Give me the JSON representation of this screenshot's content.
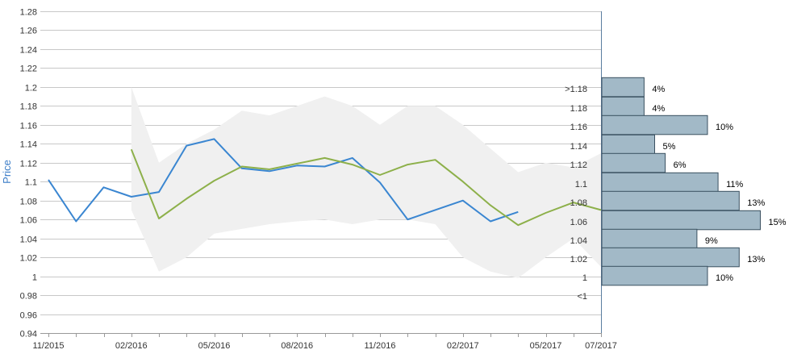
{
  "chart_data": [
    {
      "type": "line",
      "ylabel": "Price",
      "ylim": [
        0.94,
        1.28
      ],
      "yticks": [
        "0.94",
        "0.96",
        "0.98",
        "1",
        "1.02",
        "1.04",
        "1.06",
        "1.08",
        "1.1",
        "1.12",
        "1.14",
        "1.16",
        "1.18",
        "1.2",
        "1.22",
        "1.24",
        "1.26",
        "1.28"
      ],
      "xlim": [
        0,
        20
      ],
      "xticks": [
        {
          "label": "11/2015",
          "x": 0
        },
        {
          "label": "02/2016",
          "x": 3
        },
        {
          "label": "05/2016",
          "x": 6
        },
        {
          "label": "08/2016",
          "x": 9
        },
        {
          "label": "11/2016",
          "x": 12
        },
        {
          "label": "02/2017",
          "x": 15
        },
        {
          "label": "05/2017",
          "x": 18
        },
        {
          "label": "07/2017",
          "x": 20
        }
      ],
      "grid": true,
      "colors": {
        "series1": "#3a86d1",
        "series2": "#8db04a",
        "band": "#f0f0f0"
      },
      "band": {
        "x": [
          3,
          4,
          5,
          6,
          7,
          8,
          9,
          10,
          11,
          12,
          13,
          14,
          15,
          16,
          17,
          18,
          19,
          20
        ],
        "upper": [
          1.2,
          1.12,
          1.14,
          1.155,
          1.175,
          1.17,
          1.18,
          1.19,
          1.18,
          1.16,
          1.18,
          1.18,
          1.16,
          1.135,
          1.11,
          1.12,
          1.115,
          1.13
        ],
        "lower": [
          1.07,
          1.005,
          1.02,
          1.045,
          1.05,
          1.055,
          1.058,
          1.06,
          1.055,
          1.06,
          1.06,
          1.055,
          1.02,
          1.005,
          0.998,
          1.02,
          1.04,
          1.01
        ]
      },
      "series": [
        {
          "x": [
            0,
            1,
            2,
            3,
            4,
            5,
            6,
            7,
            8,
            9,
            10,
            11,
            12,
            13,
            14,
            15,
            16,
            17
          ],
          "values": [
            1.102,
            1.058,
            1.094,
            1.084,
            1.089,
            1.138,
            1.145,
            1.114,
            1.111,
            1.117,
            1.116,
            1.125,
            1.099,
            1.06,
            1.07,
            1.08,
            1.058,
            1.068
          ]
        },
        {
          "x": [
            3,
            4,
            5,
            6,
            7,
            8,
            9,
            10,
            11,
            12,
            13,
            14,
            15,
            16,
            17,
            18,
            19,
            20
          ],
          "values": [
            1.134,
            1.061,
            1.082,
            1.101,
            1.116,
            1.113,
            1.119,
            1.125,
            1.118,
            1.107,
            1.118,
            1.123,
            1.1,
            1.075,
            1.054,
            1.067,
            1.078,
            1.07
          ]
        }
      ]
    },
    {
      "type": "bar",
      "orientation": "horizontal",
      "categories": [
        ">1.18",
        "1.18",
        "1.16",
        "1.14",
        "1.12",
        "1.1",
        "1.08",
        "1.06",
        "1.04",
        "1.02",
        "1",
        "<1"
      ],
      "values": [
        4,
        4,
        10,
        5,
        6,
        11,
        13,
        15,
        9,
        13,
        10,
        null
      ],
      "labels": [
        "4%",
        "4%",
        "10%",
        "5%",
        "6%",
        "11%",
        "13%",
        "15%",
        "9%",
        "13%",
        "10%",
        ""
      ],
      "colors": {
        "bar": "#a2b9c7",
        "bar_border": "#3a5060"
      }
    }
  ]
}
